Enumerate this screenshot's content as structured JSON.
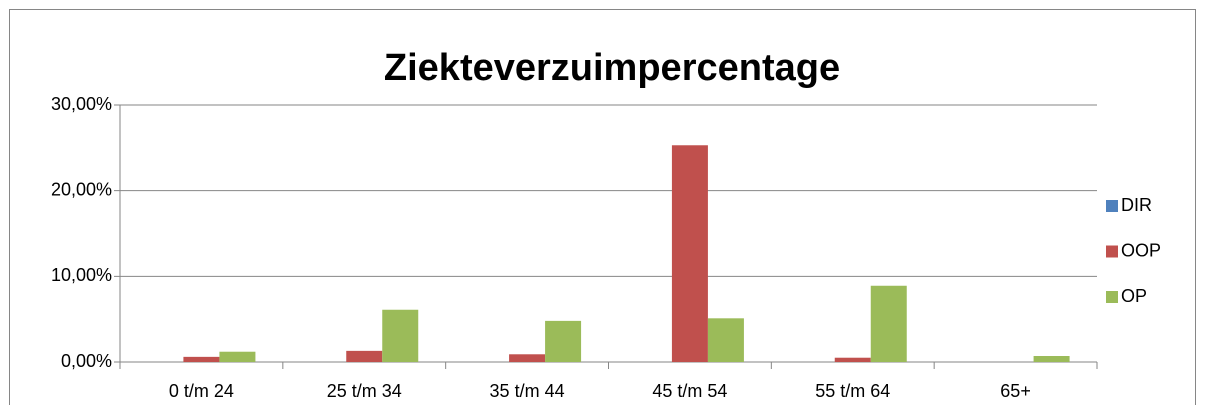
{
  "chart_data": {
    "type": "bar",
    "title": "Ziekteverzuimpercentage",
    "categories": [
      "0 t/m 24",
      "25 t/m 34",
      "35 t/m 44",
      "45 t/m 54",
      "55 t/m 64",
      "65+"
    ],
    "series": [
      {
        "name": "DIR",
        "color": "#4f81bd",
        "values": [
          0,
          0,
          0,
          0,
          0,
          0
        ]
      },
      {
        "name": "OOP",
        "color": "#c0504d",
        "values": [
          0.6,
          1.3,
          0.9,
          25.3,
          0.5,
          0
        ]
      },
      {
        "name": "OP",
        "color": "#9bbb59",
        "values": [
          1.2,
          6.1,
          4.8,
          5.1,
          8.9,
          0.7
        ]
      }
    ],
    "ylim": [
      0,
      30
    ],
    "yticks": [
      {
        "value": 0,
        "label": "0,00%"
      },
      {
        "value": 10,
        "label": "10,00%"
      },
      {
        "value": 20,
        "label": "20,00%"
      },
      {
        "value": 30,
        "label": "30,00%"
      }
    ],
    "grid": true,
    "legend": "right"
  }
}
